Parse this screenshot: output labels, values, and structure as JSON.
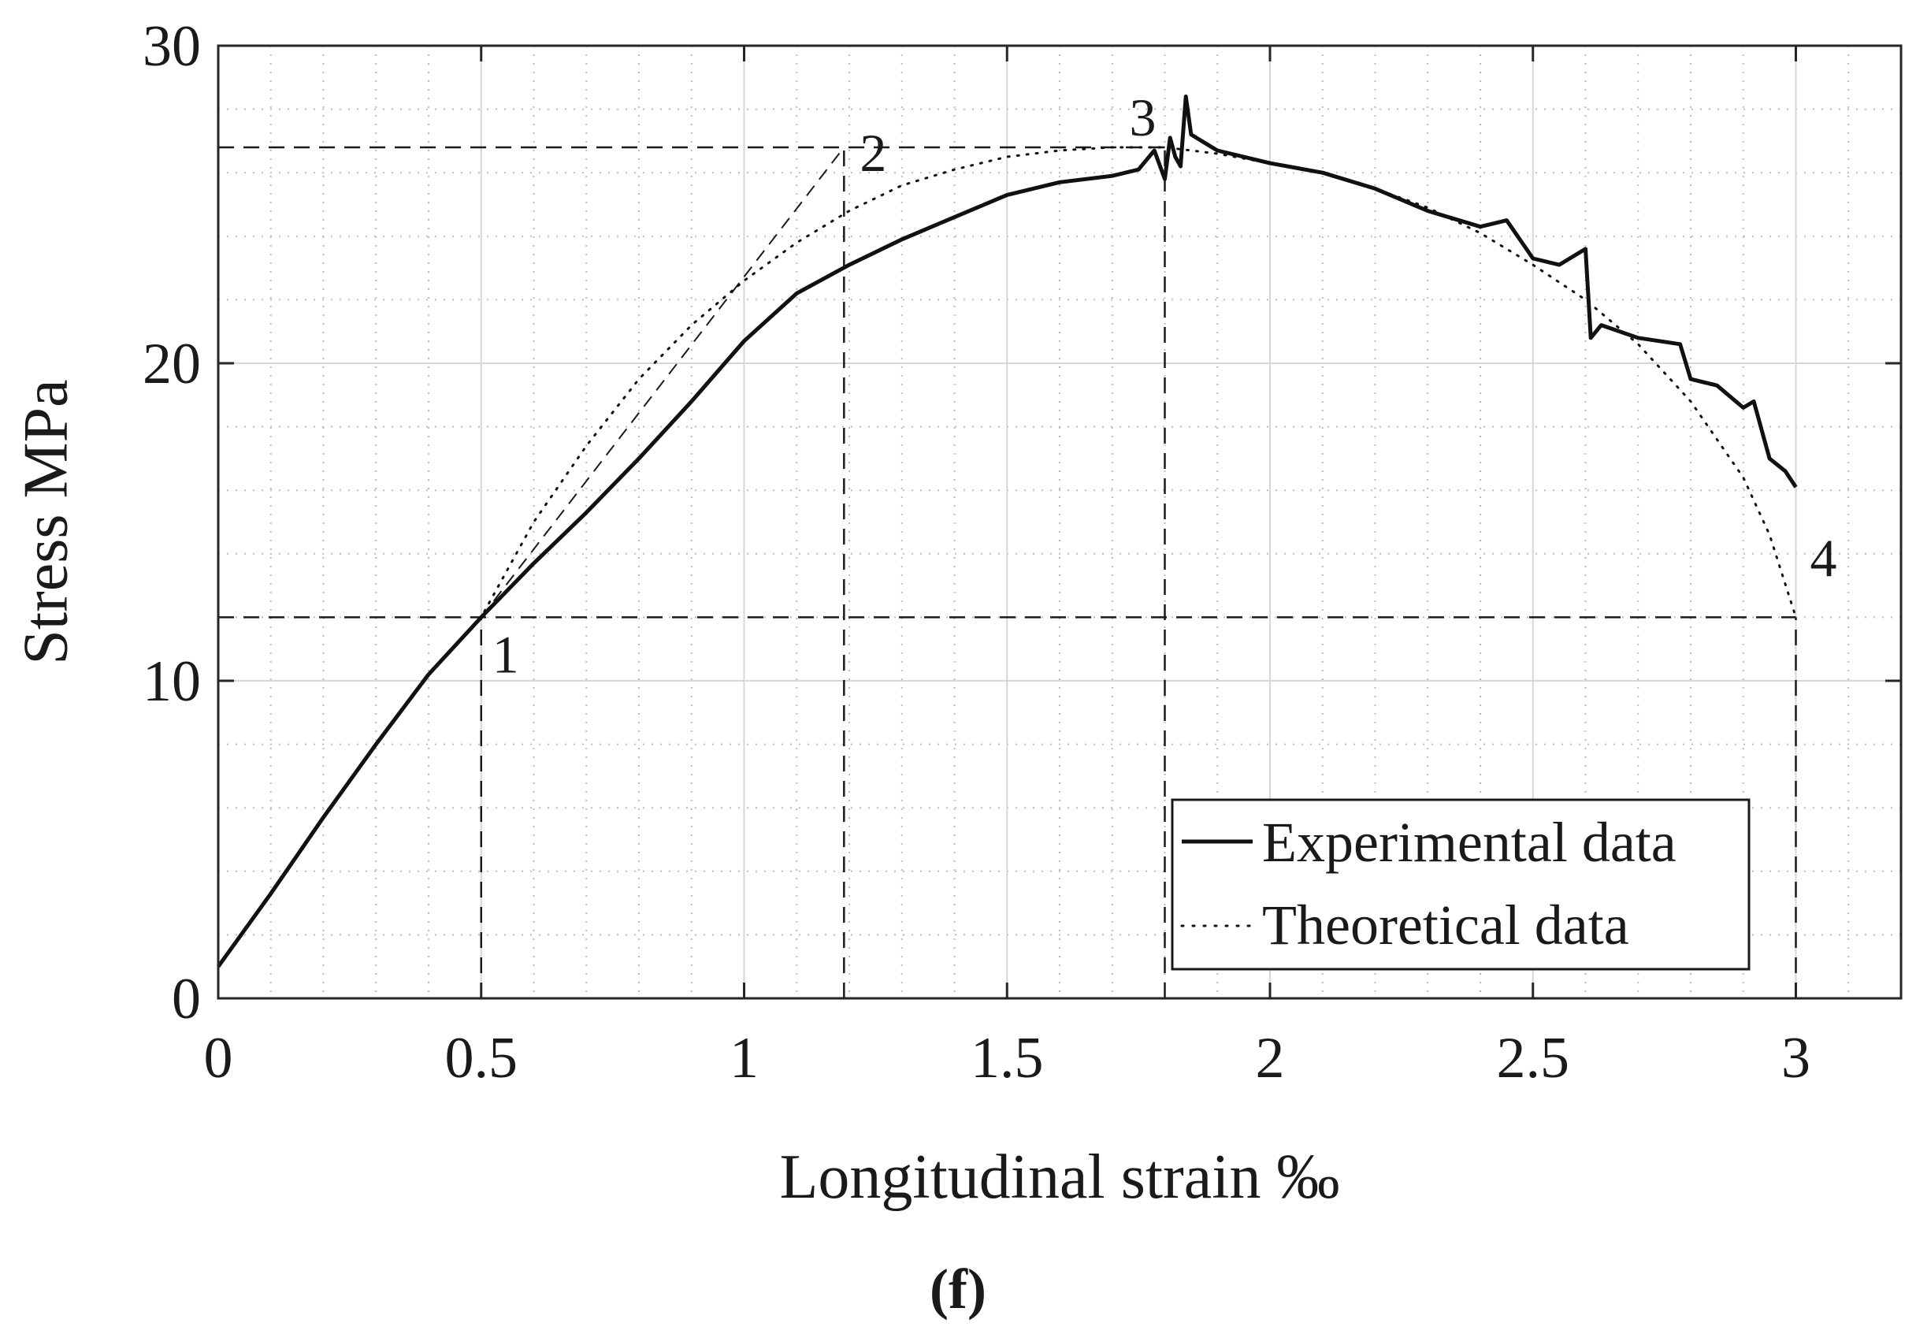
{
  "chart_data": {
    "type": "line",
    "title": "",
    "xlabel": "Longitudinal strain ‰",
    "ylabel": "Stress MPa",
    "xlim": [
      0,
      3.2
    ],
    "ylim": [
      0,
      30
    ],
    "x_ticks": [
      0,
      0.5,
      1,
      1.5,
      2,
      2.5,
      3
    ],
    "x_tick_labels": [
      "0",
      "0.5",
      "1",
      "1.5",
      "2",
      "2.5",
      "3"
    ],
    "y_ticks": [
      0,
      10,
      20,
      30
    ],
    "y_tick_labels": [
      "0",
      "10",
      "20",
      "30"
    ],
    "grid": "major solid, minor dotted",
    "legend_position": "bottom-right",
    "series": [
      {
        "name": "Experimental data",
        "style": "solid",
        "x": [
          0,
          0.1,
          0.2,
          0.3,
          0.4,
          0.5,
          0.6,
          0.7,
          0.8,
          0.9,
          1.0,
          1.1,
          1.2,
          1.3,
          1.4,
          1.5,
          1.6,
          1.7,
          1.75,
          1.78,
          1.8,
          1.81,
          1.82,
          1.83,
          1.84,
          1.85,
          1.9,
          2.0,
          2.1,
          2.2,
          2.3,
          2.4,
          2.45,
          2.5,
          2.55,
          2.6,
          2.61,
          2.63,
          2.7,
          2.78,
          2.8,
          2.85,
          2.9,
          2.92,
          2.95,
          2.98,
          3.0
        ],
        "y": [
          1.0,
          3.3,
          5.7,
          8.0,
          10.2,
          12.0,
          13.7,
          15.3,
          17.0,
          18.8,
          20.7,
          22.2,
          23.1,
          23.9,
          24.6,
          25.3,
          25.7,
          25.9,
          26.1,
          26.7,
          25.8,
          27.1,
          26.5,
          26.2,
          28.4,
          27.2,
          26.7,
          26.3,
          26.0,
          25.5,
          24.8,
          24.3,
          24.5,
          23.3,
          23.1,
          23.6,
          20.8,
          21.2,
          20.8,
          20.6,
          19.5,
          19.3,
          18.6,
          18.8,
          17.0,
          16.6,
          16.1
        ],
        "color": "#111111"
      },
      {
        "name": "Theoretical data",
        "style": "dotted",
        "x": [
          0,
          0.1,
          0.2,
          0.3,
          0.4,
          0.5,
          0.6,
          0.7,
          0.8,
          0.9,
          1.0,
          1.1,
          1.2,
          1.3,
          1.4,
          1.5,
          1.6,
          1.7,
          1.8,
          1.9,
          2.0,
          2.1,
          2.2,
          2.3,
          2.4,
          2.5,
          2.6,
          2.7,
          2.8,
          2.9,
          2.95,
          3.0
        ],
        "y": [
          1.0,
          3.3,
          5.7,
          8.0,
          10.2,
          12.0,
          15.0,
          17.4,
          19.5,
          21.2,
          22.6,
          23.8,
          24.8,
          25.6,
          26.1,
          26.5,
          26.7,
          26.8,
          26.8,
          26.6,
          26.3,
          26.0,
          25.5,
          24.9,
          24.1,
          23.1,
          22.0,
          20.6,
          18.8,
          16.4,
          14.6,
          12.0
        ],
        "color": "#111111"
      }
    ],
    "reference_lines": [
      {
        "style": "dashed",
        "from": [
          0,
          12.0
        ],
        "to": [
          3.0,
          12.0
        ]
      },
      {
        "style": "dashed",
        "from": [
          0,
          26.8
        ],
        "to": [
          1.8,
          26.8
        ]
      },
      {
        "style": "dashed",
        "from": [
          0.5,
          0
        ],
        "to": [
          0.5,
          12.0
        ]
      },
      {
        "style": "dashed",
        "from": [
          1.19,
          0
        ],
        "to": [
          1.19,
          26.8
        ]
      },
      {
        "style": "dashed",
        "from": [
          1.8,
          0
        ],
        "to": [
          1.8,
          26.8
        ]
      },
      {
        "style": "dashed",
        "from": [
          3.0,
          0
        ],
        "to": [
          3.0,
          12.0
        ]
      },
      {
        "style": "dashed-thin",
        "from": [
          0.5,
          12.0
        ],
        "to": [
          1.19,
          26.8
        ]
      }
    ],
    "annotations": [
      {
        "text": "1",
        "x": 0.5,
        "y": 12.0
      },
      {
        "text": "2",
        "x": 1.19,
        "y": 26.8
      },
      {
        "text": "3",
        "x": 1.8,
        "y": 26.8
      },
      {
        "text": "4",
        "x": 3.0,
        "y": 12.0
      }
    ]
  },
  "legend": {
    "experimental": "Experimental data",
    "theoretical": "Theoretical data"
  },
  "panel_label": "(f)"
}
